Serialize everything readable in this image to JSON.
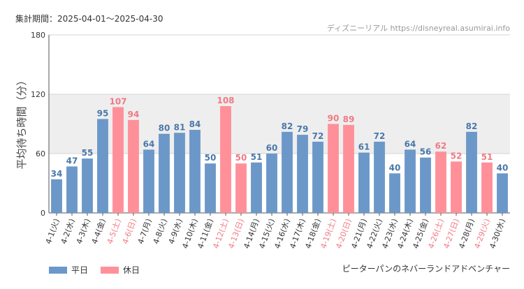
{
  "header": {
    "period": "集計期間：2025-04-01～2025-04-30",
    "source": "ディズニーリアル https://disneyreal.asumirai.info"
  },
  "footer": {
    "attraction": "ピーターパンのネバーランドアドベンチャー"
  },
  "colors": {
    "weekday": "#6b98c8",
    "holiday": "#ff9099",
    "weekday_label": "#4a78aa",
    "holiday_label": "#f07a84",
    "band": "#eeeeee"
  },
  "chart_data": {
    "type": "bar",
    "ylabel": "平均待ち時間（分）",
    "ylim": [
      0,
      180
    ],
    "yticks": [
      0,
      60,
      120,
      180
    ],
    "shaded_band": [
      60,
      120
    ],
    "legend": [
      {
        "label": "平日",
        "group": "weekday"
      },
      {
        "label": "休日",
        "group": "holiday"
      }
    ],
    "categories": [
      "4-1(火)",
      "4-2(水)",
      "4-3(木)",
      "4-4(金)",
      "4-5(土)",
      "4-6(日)",
      "4-7(月)",
      "4-8(火)",
      "4-9(水)",
      "4-10(木)",
      "4-11(金)",
      "4-12(土)",
      "4-13(日)",
      "4-14(月)",
      "4-15(火)",
      "4-16(水)",
      "4-17(木)",
      "4-18(金)",
      "4-19(土)",
      "4-20(日)",
      "4-21(月)",
      "4-22(火)",
      "4-23(水)",
      "4-24(木)",
      "4-25(金)",
      "4-26(土)",
      "4-27(日)",
      "4-28(月)",
      "4-29(火)",
      "4-30(水)"
    ],
    "values": [
      34,
      47,
      55,
      95,
      107,
      94,
      64,
      80,
      81,
      84,
      50,
      108,
      50,
      51,
      60,
      82,
      79,
      72,
      90,
      89,
      61,
      72,
      40,
      64,
      56,
      62,
      52,
      82,
      51,
      40
    ],
    "groups": [
      "weekday",
      "weekday",
      "weekday",
      "weekday",
      "holiday",
      "holiday",
      "weekday",
      "weekday",
      "weekday",
      "weekday",
      "weekday",
      "holiday",
      "holiday",
      "weekday",
      "weekday",
      "weekday",
      "weekday",
      "weekday",
      "holiday",
      "holiday",
      "weekday",
      "weekday",
      "weekday",
      "weekday",
      "weekday",
      "holiday",
      "holiday",
      "weekday",
      "holiday",
      "weekday"
    ]
  }
}
